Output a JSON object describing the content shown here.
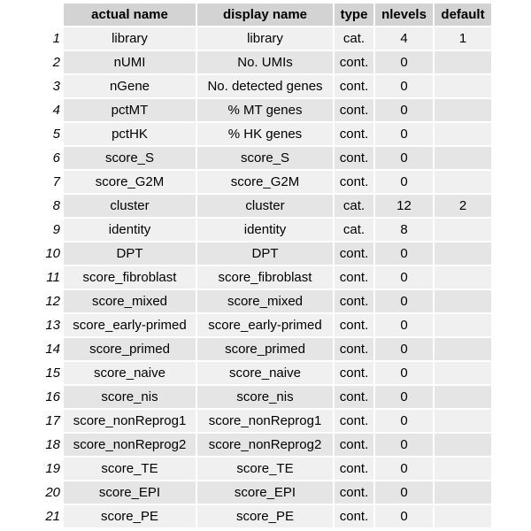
{
  "table": {
    "headers": [
      "actual name",
      "display name",
      "type",
      "nlevels",
      "default"
    ],
    "rows": [
      {
        "index": "1",
        "actual": "library",
        "display": "library",
        "type": "cat.",
        "nlevels": "4",
        "default": "1"
      },
      {
        "index": "2",
        "actual": "nUMI",
        "display": "No. UMIs",
        "type": "cont.",
        "nlevels": "0",
        "default": ""
      },
      {
        "index": "3",
        "actual": "nGene",
        "display": "No. detected genes",
        "type": "cont.",
        "nlevels": "0",
        "default": ""
      },
      {
        "index": "4",
        "actual": "pctMT",
        "display": "% MT genes",
        "type": "cont.",
        "nlevels": "0",
        "default": ""
      },
      {
        "index": "5",
        "actual": "pctHK",
        "display": "% HK genes",
        "type": "cont.",
        "nlevels": "0",
        "default": ""
      },
      {
        "index": "6",
        "actual": "score_S",
        "display": "score_S",
        "type": "cont.",
        "nlevels": "0",
        "default": ""
      },
      {
        "index": "7",
        "actual": "score_G2M",
        "display": "score_G2M",
        "type": "cont.",
        "nlevels": "0",
        "default": ""
      },
      {
        "index": "8",
        "actual": "cluster",
        "display": "cluster",
        "type": "cat.",
        "nlevels": "12",
        "default": "2"
      },
      {
        "index": "9",
        "actual": "identity",
        "display": "identity",
        "type": "cat.",
        "nlevels": "8",
        "default": ""
      },
      {
        "index": "10",
        "actual": "DPT",
        "display": "DPT",
        "type": "cont.",
        "nlevels": "0",
        "default": ""
      },
      {
        "index": "11",
        "actual": "score_fibroblast",
        "display": "score_fibroblast",
        "type": "cont.",
        "nlevels": "0",
        "default": ""
      },
      {
        "index": "12",
        "actual": "score_mixed",
        "display": "score_mixed",
        "type": "cont.",
        "nlevels": "0",
        "default": ""
      },
      {
        "index": "13",
        "actual": "score_early-primed",
        "display": "score_early-primed",
        "type": "cont.",
        "nlevels": "0",
        "default": ""
      },
      {
        "index": "14",
        "actual": "score_primed",
        "display": "score_primed",
        "type": "cont.",
        "nlevels": "0",
        "default": ""
      },
      {
        "index": "15",
        "actual": "score_naive",
        "display": "score_naive",
        "type": "cont.",
        "nlevels": "0",
        "default": ""
      },
      {
        "index": "16",
        "actual": "score_nis",
        "display": "score_nis",
        "type": "cont.",
        "nlevels": "0",
        "default": ""
      },
      {
        "index": "17",
        "actual": "score_nonReprog1",
        "display": "score_nonReprog1",
        "type": "cont.",
        "nlevels": "0",
        "default": ""
      },
      {
        "index": "18",
        "actual": "score_nonReprog2",
        "display": "score_nonReprog2",
        "type": "cont.",
        "nlevels": "0",
        "default": ""
      },
      {
        "index": "19",
        "actual": "score_TE",
        "display": "score_TE",
        "type": "cont.",
        "nlevels": "0",
        "default": ""
      },
      {
        "index": "20",
        "actual": "score_EPI",
        "display": "score_EPI",
        "type": "cont.",
        "nlevels": "0",
        "default": ""
      },
      {
        "index": "21",
        "actual": "score_PE",
        "display": "score_PE",
        "type": "cont.",
        "nlevels": "0",
        "default": ""
      }
    ]
  }
}
